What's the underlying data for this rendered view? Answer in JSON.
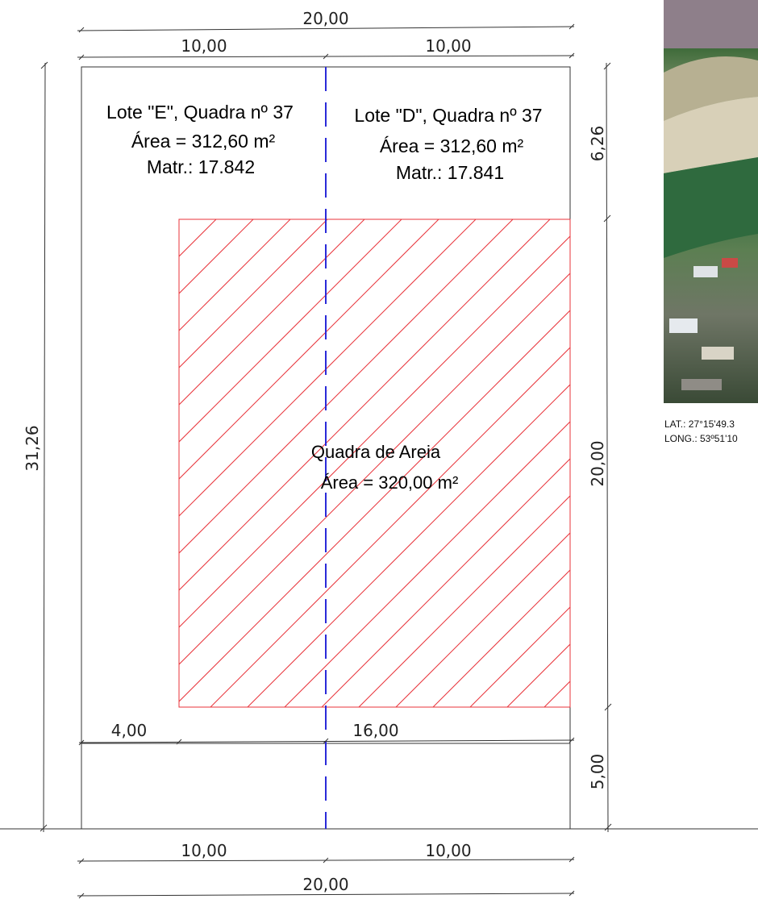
{
  "dimensions": {
    "total_width_top": "20,00",
    "left_half_top": "10,00",
    "right_half_top": "10,00",
    "total_depth": "31,26",
    "setback_top": "6,26",
    "court_depth": "20,00",
    "setback_bottom": "5,00",
    "court_offset": "4,00",
    "court_width": "16,00",
    "left_half_bottom": "10,00",
    "right_half_bottom": "10,00",
    "total_width_bottom": "20,00"
  },
  "lot_e": {
    "name": "Lote \"E\", Quadra nº 37",
    "area": "Área = 312,60 m²",
    "registration": "Matr.: 17.842"
  },
  "lot_d": {
    "name": "Lote \"D\", Quadra nº 37",
    "area": "Área = 312,60 m²",
    "registration": "Matr.: 17.841"
  },
  "court": {
    "name": "Quadra de Areia",
    "area": "Área = 320,00 m²"
  },
  "location": {
    "lat": "LAT.: 27°15'49.3",
    "long": "LONG.: 53º51'10"
  },
  "colors": {
    "court_hatch": "#e8333a",
    "lot_divider": "#2a2ad8",
    "outline": "#333333"
  }
}
